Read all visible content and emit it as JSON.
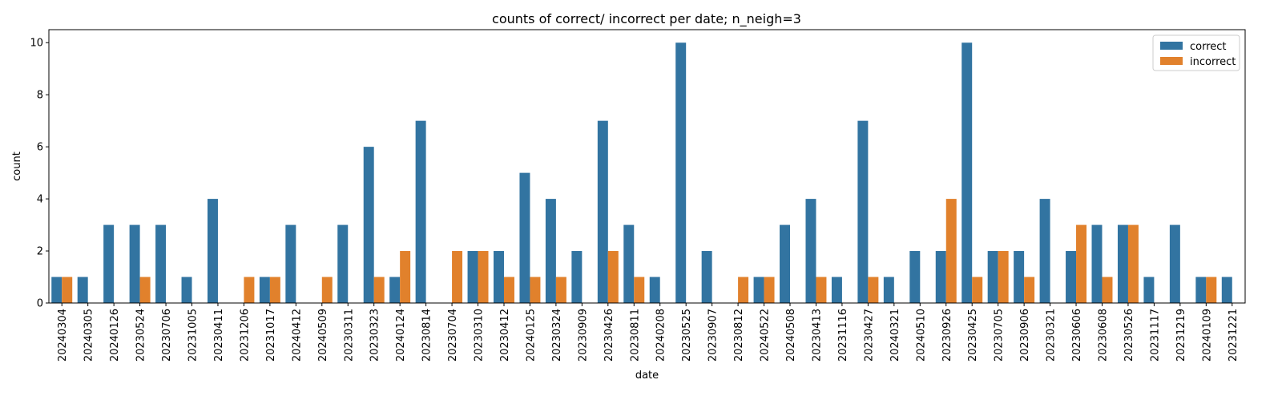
{
  "chart_data": {
    "type": "bar",
    "title": "counts of correct/ incorrect per date; n_neigh=3",
    "xlabel": "date",
    "ylabel": "count",
    "ylim": [
      0,
      10.5
    ],
    "yticks": [
      0,
      2,
      4,
      6,
      8,
      10
    ],
    "grid": false,
    "legend_position": "top-right",
    "categories": [
      "20240304",
      "20240305",
      "20240126",
      "20230524",
      "20230706",
      "20231005",
      "20230411",
      "20231206",
      "20231017",
      "20240412",
      "20240509",
      "20230311",
      "20230323",
      "20240124",
      "20230814",
      "20230704",
      "20230310",
      "20230412",
      "20240125",
      "20230324",
      "20230909",
      "20230426",
      "20230811",
      "20240208",
      "20230525",
      "20230907",
      "20230812",
      "20240522",
      "20240508",
      "20230413",
      "20231116",
      "20230427",
      "20240321",
      "20240510",
      "20230926",
      "20230425",
      "20230705",
      "20230906",
      "20230321",
      "20230606",
      "20230608",
      "20230526",
      "20231117",
      "20231219",
      "20240109",
      "20231221"
    ],
    "series": [
      {
        "name": "correct",
        "color": "#3274a1",
        "values": [
          1,
          1,
          3,
          3,
          3,
          1,
          4,
          0,
          1,
          3,
          0,
          3,
          6,
          1,
          7,
          0,
          2,
          2,
          5,
          4,
          2,
          7,
          3,
          1,
          10,
          2,
          0,
          1,
          3,
          4,
          1,
          7,
          1,
          2,
          2,
          10,
          2,
          2,
          4,
          2,
          3,
          3,
          1,
          3,
          1,
          1
        ]
      },
      {
        "name": "incorrect",
        "color": "#e1812c",
        "values": [
          1,
          0,
          0,
          1,
          0,
          0,
          0,
          1,
          1,
          0,
          1,
          0,
          1,
          2,
          0,
          2,
          2,
          1,
          1,
          1,
          0,
          2,
          1,
          0,
          0,
          0,
          1,
          1,
          0,
          1,
          0,
          1,
          0,
          0,
          4,
          1,
          2,
          1,
          0,
          3,
          1,
          3,
          0,
          0,
          1,
          0
        ]
      }
    ]
  }
}
